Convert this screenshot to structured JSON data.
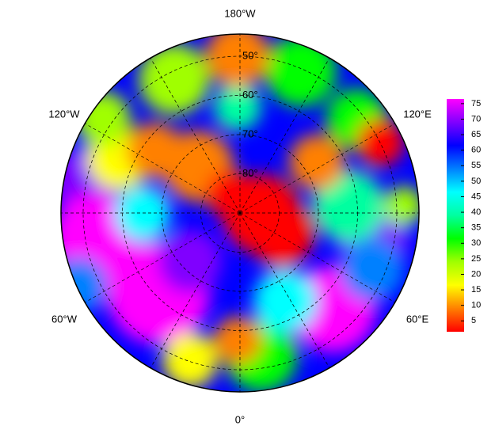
{
  "map": {
    "meridian_labels": [
      "180°W",
      "120°W",
      "120°E",
      "60°W",
      "60°E",
      "0°"
    ],
    "parallels": [
      {
        "value": 50,
        "label": "50°"
      },
      {
        "value": 60,
        "label": "60°"
      },
      {
        "value": 70,
        "label": "70°"
      },
      {
        "value": 80,
        "label": "80°"
      }
    ],
    "colorbar": {
      "lim": [
        1.5,
        76.5
      ],
      "ticks": [
        5,
        10,
        15,
        20,
        25,
        30,
        35,
        40,
        45,
        50,
        55,
        60,
        65,
        70,
        75
      ],
      "colormap": [
        "#ff0000",
        "#ff8000",
        "#ffff00",
        "#a0ff00",
        "#00ff00",
        "#00ffa0",
        "#00ffff",
        "#0080ff",
        "#0000ff",
        "#8000ff",
        "#ff00ff"
      ]
    }
  }
}
